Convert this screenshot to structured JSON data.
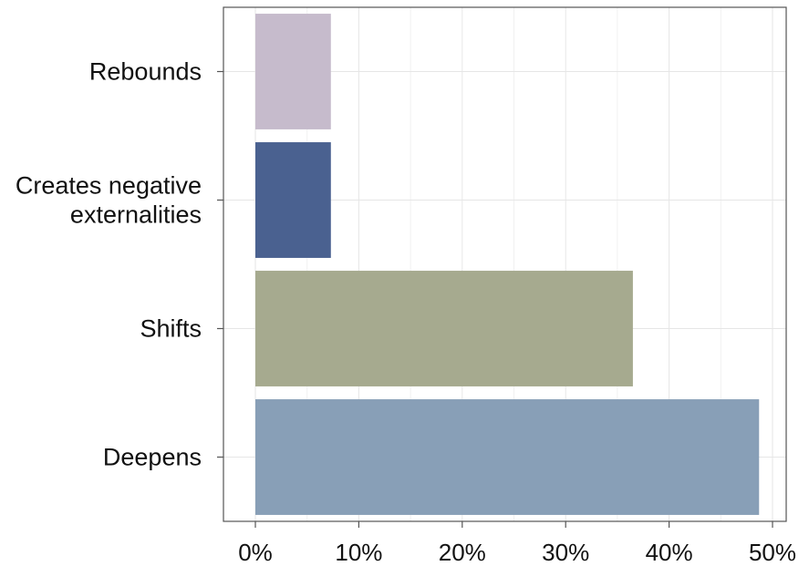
{
  "chart_data": {
    "type": "bar",
    "orientation": "horizontal",
    "title": "",
    "xlabel": "",
    "ylabel": "",
    "categories": [
      [
        "Rebounds"
      ],
      [
        "Creates negative",
        "externalities"
      ],
      [
        "Shifts"
      ],
      [
        "Deepens"
      ]
    ],
    "values": [
      7.3,
      7.3,
      36.5,
      48.7
    ],
    "colors": [
      "#c6bbcc",
      "#4a6190",
      "#a6aa8f",
      "#889fb7"
    ],
    "xlim": [
      0,
      51
    ],
    "x_ticks": [
      0,
      10,
      20,
      30,
      40,
      50
    ],
    "x_tick_labels": [
      "0%",
      "10%",
      "20%",
      "30%",
      "40%",
      "50%"
    ],
    "grid": true,
    "legend": "none"
  }
}
